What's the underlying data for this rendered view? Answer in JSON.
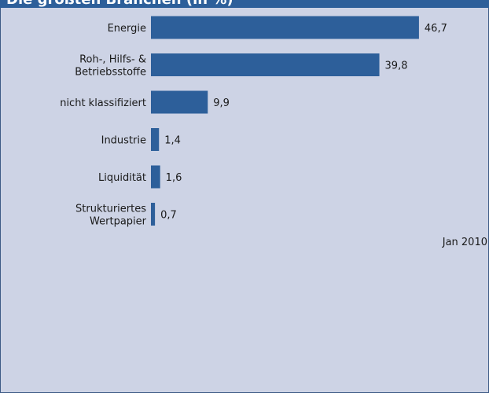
{
  "title": "Die größten Branchen (in %)",
  "date_label": "Jan 2010",
  "colors": {
    "bar": "#2d5f9a",
    "background": "#cdd3e5",
    "title_bar": "#2d5f9a"
  },
  "chart_data": {
    "type": "bar",
    "orientation": "horizontal",
    "categories": [
      [
        "Energie"
      ],
      [
        "Roh-, Hilfs- &",
        "Betriebsstoffe"
      ],
      [
        "nicht klassifiziert"
      ],
      [
        "Industrie"
      ],
      [
        "Liquidität"
      ],
      [
        "Strukturiertes",
        "Wertpapier"
      ]
    ],
    "values": [
      46.7,
      39.8,
      9.9,
      1.4,
      1.6,
      0.7
    ],
    "value_labels": [
      "46,7",
      "39,8",
      "9,9",
      "1,4",
      "1,6",
      "0,7"
    ],
    "title": "Die größten Branchen (in %)",
    "xlim": [
      0,
      50
    ],
    "grid": false,
    "legend": "none"
  }
}
